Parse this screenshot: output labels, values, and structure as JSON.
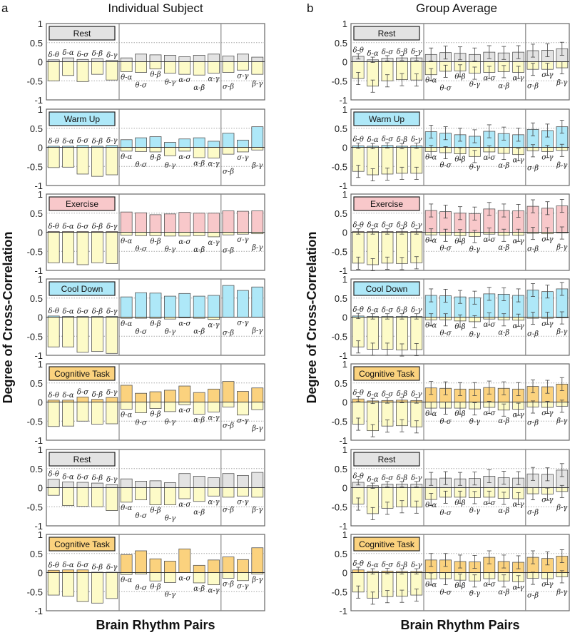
{
  "chart_data": [
    {
      "type": "bar",
      "panel_letter": "a",
      "title": "Individual Subject",
      "xlabel": "Brain Rhythm Pairs",
      "ylabel": "Degree of Cross-Correlation",
      "ylim": [
        -1,
        1
      ],
      "yticks": [
        "1",
        "0.5",
        "0",
        "-0.5",
        "-1"
      ],
      "categories": [
        "δ-θ",
        "δ-α",
        "δ-σ",
        "δ-β",
        "δ-γ",
        "θ-α",
        "θ-σ",
        "θ-β",
        "θ-γ",
        "α-σ",
        "α-β",
        "α-γ",
        "σ-β",
        "σ-γ",
        "β-γ"
      ],
      "error_bars": false,
      "panels": [
        {
          "condition": "Rest",
          "color": "#e3e3e3",
          "positive": [
            0.05,
            0.1,
            0.06,
            0.08,
            0.04,
            0.1,
            0.2,
            0.18,
            0.17,
            0.13,
            0.17,
            0.2,
            0.15,
            0.2,
            0.12
          ],
          "negative": [
            -0.5,
            -0.36,
            -0.52,
            -0.33,
            -0.48,
            -0.26,
            -0.28,
            -0.19,
            -0.3,
            -0.33,
            -0.35,
            -0.3,
            -0.28,
            -0.22,
            -0.33
          ]
        },
        {
          "condition": "Warm Up",
          "color": "#aee8f8",
          "positive": [
            0.03,
            0.03,
            0.05,
            0.03,
            0.05,
            0.2,
            0.25,
            0.28,
            0.13,
            0.22,
            0.25,
            0.16,
            0.37,
            0.19,
            0.54
          ],
          "negative": [
            -0.53,
            -0.52,
            -0.7,
            -0.76,
            -0.72,
            -0.1,
            -0.11,
            -0.12,
            -0.22,
            -0.1,
            -0.27,
            -0.28,
            -0.18,
            -0.12,
            -0.07
          ]
        },
        {
          "condition": "Exercise",
          "color": "#f8c8ca",
          "positive": [
            0.02,
            0.02,
            0.02,
            0.02,
            0.02,
            0.53,
            0.51,
            0.46,
            0.48,
            0.52,
            0.5,
            0.5,
            0.56,
            0.55,
            0.56
          ],
          "negative": [
            -0.8,
            -0.8,
            -0.85,
            -0.8,
            -0.82,
            -0.08,
            -0.09,
            -0.09,
            -0.1,
            -0.1,
            -0.09,
            -0.12,
            -0.07,
            -0.05,
            -0.04
          ]
        },
        {
          "condition": "Cool Down",
          "color": "#aee8f8",
          "positive": [
            0.03,
            0.02,
            0.02,
            0.02,
            0.02,
            0.53,
            0.64,
            0.63,
            0.55,
            0.62,
            0.55,
            0.57,
            0.83,
            0.7,
            0.79
          ],
          "negative": [
            -0.78,
            -0.78,
            -0.92,
            -0.9,
            -0.95,
            -0.03,
            -0.03,
            -0.03,
            -0.05,
            -0.02,
            -0.03,
            -0.06,
            0,
            0,
            0
          ]
        },
        {
          "condition": "Cognitive Task",
          "color": "#fbd27e",
          "positive": [
            0.05,
            0.05,
            0.13,
            0.07,
            0.12,
            0.44,
            0.23,
            0.27,
            0.31,
            0.42,
            0.25,
            0.34,
            0.54,
            0.28,
            0.37
          ],
          "negative": [
            -0.64,
            -0.63,
            -0.5,
            -0.58,
            -0.57,
            -0.19,
            -0.28,
            -0.17,
            -0.25,
            -0.07,
            -0.32,
            -0.26,
            -0.13,
            -0.34,
            -0.2
          ]
        },
        {
          "condition": "Rest",
          "color": "#e3e3e3",
          "positive": [
            0.22,
            0.15,
            0.14,
            0.12,
            0.08,
            0.23,
            0.17,
            0.18,
            0.13,
            0.37,
            0.3,
            0.26,
            0.37,
            0.32,
            0.4
          ],
          "negative": [
            -0.2,
            -0.47,
            -0.49,
            -0.5,
            -0.6,
            -0.38,
            -0.32,
            -0.45,
            -0.45,
            -0.29,
            -0.36,
            -0.22,
            -0.25,
            -0.22,
            -0.25
          ]
        },
        {
          "condition": "Cognitive Task",
          "color": "#fbd27e",
          "positive": [
            0.06,
            0.07,
            0.07,
            0.01,
            0.01,
            0.47,
            0.57,
            0.36,
            0.3,
            0.62,
            0.19,
            0.33,
            0.41,
            0.34,
            0.65
          ],
          "negative": [
            -0.59,
            -0.62,
            -0.76,
            -0.8,
            -0.68,
            -0.05,
            -0.04,
            -0.22,
            -0.26,
            0,
            -0.27,
            -0.32,
            -0.15,
            -0.21,
            -0.04
          ]
        }
      ]
    },
    {
      "type": "bar",
      "panel_letter": "b",
      "title": "Group Average",
      "xlabel": "Brain Rhythm Pairs",
      "ylabel": "Degree of Cross-Correlation",
      "ylim": [
        -1,
        1
      ],
      "yticks": [
        "1",
        "0.5",
        "0",
        "-0.5",
        "-1"
      ],
      "categories": [
        "δ-θ",
        "δ-α",
        "δ-σ",
        "δ-β",
        "δ-γ",
        "θ-α",
        "θ-σ",
        "θ-β",
        "θ-γ",
        "α-σ",
        "α-β",
        "α-γ",
        "σ-β",
        "σ-γ",
        "β-γ"
      ],
      "error_bars": true,
      "error_estimate": {
        "positive": 0.17,
        "positive_delta_pairs": 0.07,
        "negative": 0.16
      },
      "panels": [
        {
          "condition": "Rest",
          "color": "#e3e3e3",
          "positive": [
            0.14,
            0.05,
            0.09,
            0.1,
            0.1,
            0.19,
            0.24,
            0.22,
            0.19,
            0.25,
            0.23,
            0.25,
            0.29,
            0.3,
            0.34
          ],
          "negative": [
            -0.44,
            -0.64,
            -0.5,
            -0.47,
            -0.48,
            -0.34,
            -0.25,
            -0.24,
            -0.3,
            -0.28,
            -0.26,
            -0.28,
            -0.2,
            -0.2,
            -0.16
          ]
        },
        {
          "condition": "Warm Up",
          "color": "#aee8f8",
          "positive": [
            0.04,
            0.03,
            0.05,
            0.03,
            0.04,
            0.41,
            0.37,
            0.33,
            0.29,
            0.42,
            0.36,
            0.33,
            0.47,
            0.44,
            0.54
          ],
          "negative": [
            -0.63,
            -0.72,
            -0.7,
            -0.68,
            -0.68,
            -0.11,
            -0.14,
            -0.17,
            -0.24,
            -0.12,
            -0.16,
            -0.19,
            -0.09,
            -0.11,
            -0.08
          ]
        },
        {
          "condition": "Exercise",
          "color": "#f8c8ca",
          "positive": [
            0.02,
            0.02,
            0.02,
            0.02,
            0.02,
            0.57,
            0.54,
            0.5,
            0.49,
            0.61,
            0.57,
            0.56,
            0.68,
            0.63,
            0.69
          ],
          "negative": [
            -0.81,
            -0.85,
            -0.81,
            -0.82,
            -0.8,
            -0.07,
            -0.08,
            -0.09,
            -0.11,
            -0.05,
            -0.08,
            -0.08,
            -0.03,
            -0.04,
            -0.02
          ]
        },
        {
          "condition": "Cool Down",
          "color": "#aee8f8",
          "positive": [
            0.03,
            0.02,
            0.02,
            0.02,
            0.02,
            0.57,
            0.56,
            0.53,
            0.51,
            0.61,
            0.6,
            0.57,
            0.71,
            0.67,
            0.74
          ],
          "negative": [
            -0.78,
            -0.84,
            -0.84,
            -0.86,
            -0.85,
            -0.07,
            -0.07,
            -0.1,
            -0.12,
            -0.05,
            -0.07,
            -0.08,
            -0.03,
            -0.03,
            -0.02
          ]
        },
        {
          "condition": "Cognitive Task",
          "color": "#fbd27e",
          "positive": [
            0.08,
            0.03,
            0.04,
            0.05,
            0.04,
            0.37,
            0.36,
            0.34,
            0.34,
            0.38,
            0.36,
            0.34,
            0.41,
            0.4,
            0.47
          ],
          "negative": [
            -0.58,
            -0.75,
            -0.63,
            -0.62,
            -0.65,
            -0.16,
            -0.16,
            -0.16,
            -0.18,
            -0.14,
            -0.21,
            -0.19,
            -0.13,
            -0.14,
            -0.11
          ]
        },
        {
          "condition": "Rest",
          "color": "#e3e3e3",
          "positive": [
            0.14,
            0.05,
            0.09,
            0.09,
            0.09,
            0.23,
            0.25,
            0.23,
            0.24,
            0.3,
            0.26,
            0.25,
            0.36,
            0.35,
            0.46
          ],
          "negative": [
            -0.43,
            -0.68,
            -0.54,
            -0.5,
            -0.51,
            -0.31,
            -0.25,
            -0.25,
            -0.26,
            -0.25,
            -0.28,
            -0.29,
            -0.16,
            -0.17,
            -0.1
          ]
        },
        {
          "condition": "Cognitive Task",
          "color": "#fbd27e",
          "positive": [
            0.07,
            0.03,
            0.04,
            0.03,
            0.03,
            0.33,
            0.33,
            0.29,
            0.28,
            0.4,
            0.29,
            0.27,
            0.4,
            0.37,
            0.43
          ],
          "negative": [
            -0.51,
            -0.67,
            -0.63,
            -0.62,
            -0.59,
            -0.17,
            -0.16,
            -0.2,
            -0.22,
            -0.16,
            -0.22,
            -0.24,
            -0.15,
            -0.16,
            -0.11
          ]
        }
      ]
    }
  ],
  "colors": {
    "negative_bar": "#fdfbc8",
    "bar_edge": "#555555",
    "frame": "#666666"
  }
}
